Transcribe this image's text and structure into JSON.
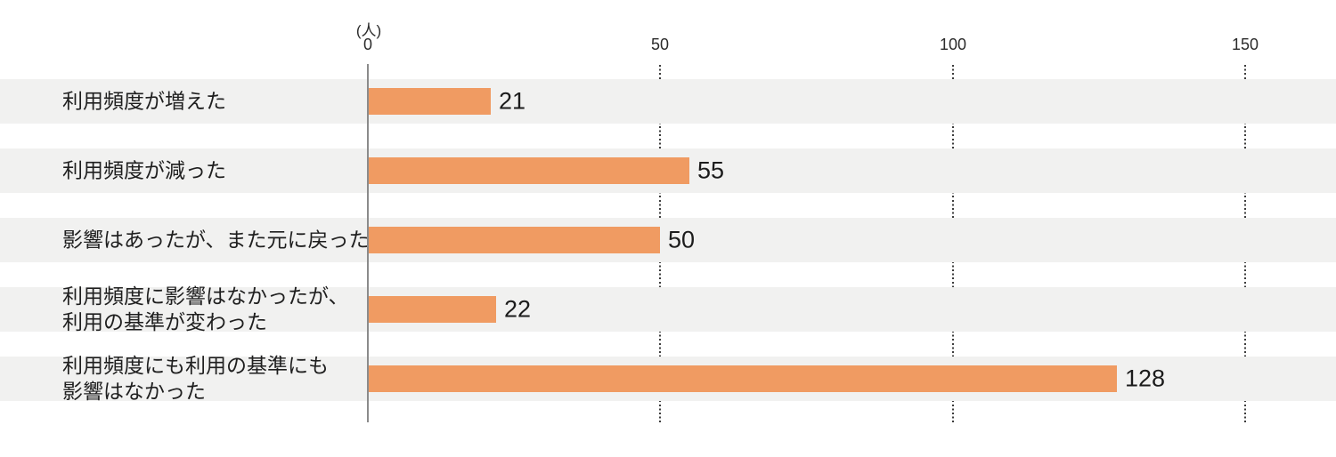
{
  "chart_data": {
    "type": "bar",
    "orientation": "horizontal",
    "title": "",
    "unit_label": "(人)",
    "xlabel": "",
    "ylabel": "",
    "xlim": [
      0,
      165
    ],
    "xticks": [
      "0",
      "50",
      "100",
      "150"
    ],
    "xtick_values": [
      0,
      50,
      100,
      150
    ],
    "grid": "dotted-vertical-at-ticks-visible-in-row-gaps",
    "legend": "none",
    "categories": [
      "利用頻度が増えた",
      "利用頻度が減った",
      "影響はあったが、また元に戻った",
      "利用頻度に影響はなかったが、\n利用の基準が変わった",
      "利用頻度にも利用の基準にも\n影響はなかった"
    ],
    "values": [
      21,
      55,
      50,
      22,
      128
    ]
  },
  "colors": {
    "bar": "#f09b62",
    "row_band": "#f1f1f0",
    "axis_line": "#8b8b8b",
    "grid_dots": "#3c3c3c",
    "text": "#1f1f1f",
    "background": "#ffffff"
  }
}
